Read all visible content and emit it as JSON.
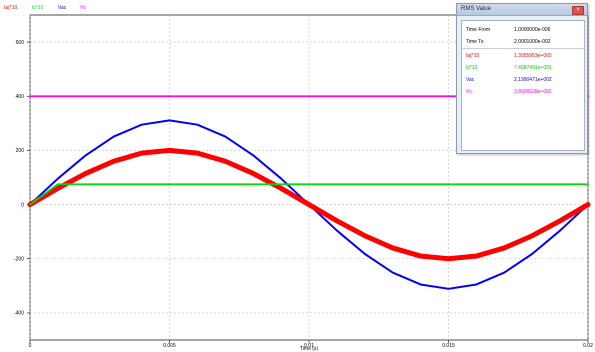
{
  "legend": [
    {
      "label": "Ia(*10",
      "color": "#ff0000"
    },
    {
      "label": "Ic*10",
      "color": "#00dd00"
    },
    {
      "label": "Vac",
      "color": "#0000ff"
    },
    {
      "label": "Vc",
      "color": "#ff00ff"
    }
  ],
  "rms_window": {
    "title": "RMS Value",
    "rows": [
      {
        "label": "Time  From",
        "value": "1.0000000e-006",
        "color": "#000000"
      },
      {
        "label": "Time  To",
        "value": "2.0001000e-002",
        "color": "#000000"
      },
      {
        "label": "Ia(*10",
        "value": "1.3955953e+002",
        "color": "#ff0000"
      },
      {
        "label": "Ic*10",
        "value": "7.4987491e+001",
        "color": "#00cc00"
      },
      {
        "label": "Vac",
        "value": "2.1990471e+002",
        "color": "#0000ff"
      },
      {
        "label": "Vc",
        "value": "3.9998328e+002",
        "color": "#ff00ff"
      }
    ]
  },
  "chart_data": {
    "type": "line",
    "xlabel": "Time (s)",
    "xlim": [
      0,
      0.02
    ],
    "ylim": [
      -500,
      700
    ],
    "x_ticks": [
      0,
      0.005,
      0.01,
      0.015,
      0.02
    ],
    "x_tick_labels": [
      "0",
      "0.005",
      "0.01",
      "0.015",
      "0.02"
    ],
    "y_ticks": [
      -400,
      -200,
      0,
      200,
      400,
      600
    ],
    "y_tick_labels": [
      "-400",
      "-200",
      "0",
      "200",
      "400",
      "600"
    ],
    "grid": true,
    "legend_position": "top-left",
    "series": [
      {
        "name": "Ia(*10",
        "color": "#ff0000",
        "x": [
          0,
          0.001,
          0.002,
          0.003,
          0.004,
          0.005,
          0.006,
          0.007,
          0.008,
          0.009,
          0.01,
          0.011,
          0.012,
          0.013,
          0.014,
          0.015,
          0.016,
          0.017,
          0.018,
          0.019,
          0.02
        ],
        "values": [
          0,
          60,
          115,
          160,
          190,
          200,
          190,
          160,
          115,
          60,
          0,
          -60,
          -115,
          -160,
          -190,
          -200,
          -190,
          -160,
          -115,
          -60,
          0
        ]
      },
      {
        "name": "Ic*10",
        "color": "#00dd00",
        "x": [
          0,
          0.001,
          0.02
        ],
        "values": [
          0,
          75,
          75
        ]
      },
      {
        "name": "Vac",
        "color": "#0000ff",
        "x": [
          0,
          0.001,
          0.002,
          0.003,
          0.004,
          0.005,
          0.006,
          0.007,
          0.008,
          0.009,
          0.01,
          0.011,
          0.012,
          0.013,
          0.014,
          0.015,
          0.016,
          0.017,
          0.018,
          0.019,
          0.02
        ],
        "values": [
          0,
          96,
          182,
          251,
          295,
          311,
          295,
          251,
          182,
          96,
          0,
          -96,
          -182,
          -251,
          -295,
          -311,
          -295,
          -251,
          -182,
          -96,
          0
        ]
      },
      {
        "name": "Vc",
        "color": "#ff00ff",
        "x": [
          0,
          0.02
        ],
        "values": [
          400,
          400
        ]
      }
    ]
  }
}
